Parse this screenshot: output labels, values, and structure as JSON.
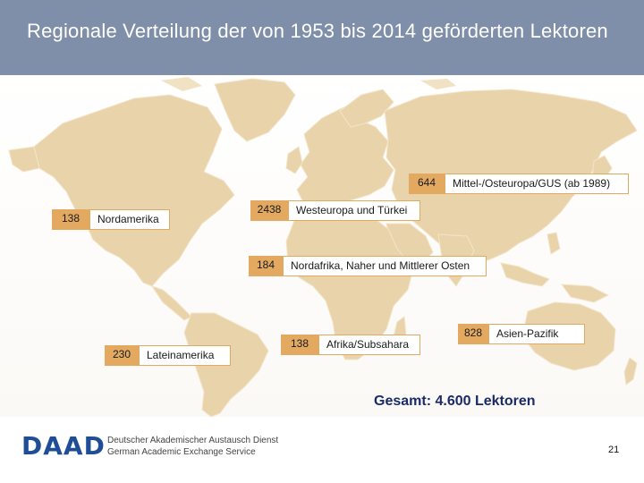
{
  "title": "Regionale Verteilung der von 1953 bis 2014 geförderten Lektoren",
  "colors": {
    "header": "#7f8fa9",
    "land": "#e9d3ab",
    "marker": "#e3a961",
    "brand": "#1f4e96"
  },
  "regions": [
    {
      "id": "mittel-osteuropa",
      "count": "644",
      "label": "Mittel-/Osteuropa/GUS (ab 1989)"
    },
    {
      "id": "nordamerika",
      "count": "138",
      "label": "Nordamerika"
    },
    {
      "id": "westeuropa",
      "count": "2438",
      "label": "Westeuropa und Türkei"
    },
    {
      "id": "nordafrika",
      "count": "184",
      "label": "Nordafrika, Naher und Mittlerer Osten"
    },
    {
      "id": "lateinamerika",
      "count": "230",
      "label": "Lateinamerika"
    },
    {
      "id": "afrika",
      "count": "138",
      "label": "Afrika/Subsahara"
    },
    {
      "id": "asien-pazifik",
      "count": "828",
      "label": "Asien-Pazifik"
    }
  ],
  "total": "Gesamt: 4.600 Lektoren",
  "footer": {
    "logo_text": "DAAD",
    "org_de": "Deutscher Akademischer Austausch Dienst",
    "org_en": "German Academic Exchange Service",
    "page_number": "21"
  }
}
